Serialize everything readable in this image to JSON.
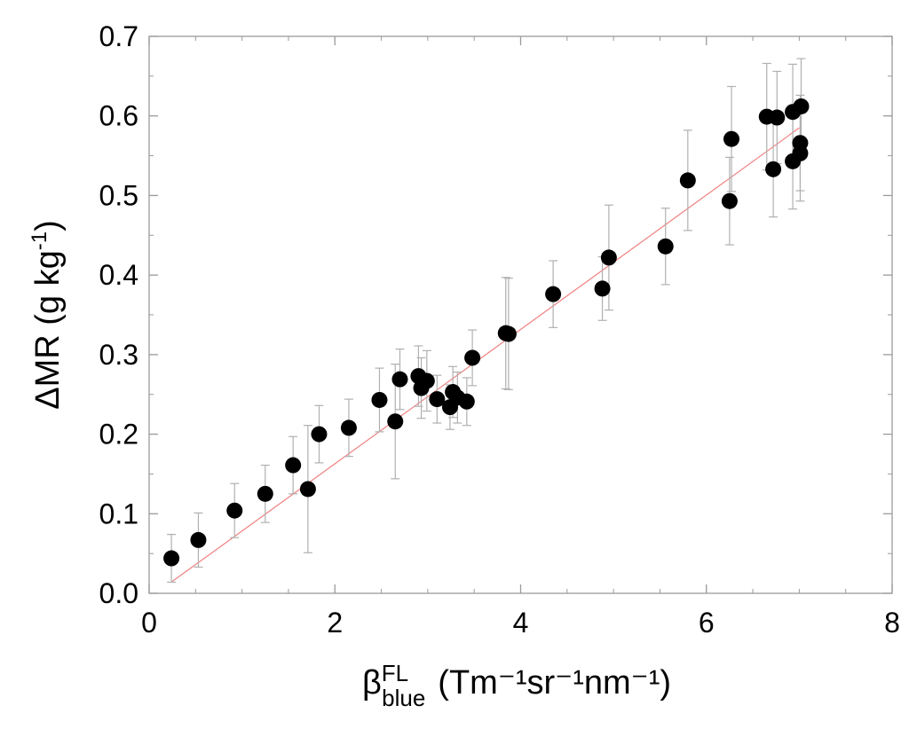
{
  "chart_data": {
    "type": "scatter",
    "xlabel": {
      "base": "β",
      "sup": "FL",
      "sub": "blue",
      "unit": "(Tm⁻¹sr⁻¹nm⁻¹)"
    },
    "ylabel": {
      "text": "ΔMR (g kg",
      "sup": "-1",
      "close": ")"
    },
    "xlim": [
      0,
      8
    ],
    "ylim": [
      0,
      0.7
    ],
    "xticks": [
      "0",
      "2",
      "4",
      "6",
      "8"
    ],
    "yticks": [
      "0.0",
      "0.1",
      "0.2",
      "0.3",
      "0.4",
      "0.5",
      "0.6",
      "0.7"
    ],
    "grid": false,
    "marker_color": "#000000",
    "errorbar_color": "#b0b0b0",
    "fit_line_color": "#f08080",
    "fit_line": {
      "x": [
        0.25,
        7.0
      ],
      "y": [
        0.015,
        0.585
      ]
    },
    "points": [
      {
        "x": 0.24,
        "y": 0.044,
        "err": 0.03
      },
      {
        "x": 0.53,
        "y": 0.067,
        "err": 0.034
      },
      {
        "x": 0.92,
        "y": 0.104,
        "err": 0.034
      },
      {
        "x": 1.25,
        "y": 0.125,
        "err": 0.036
      },
      {
        "x": 1.55,
        "y": 0.161,
        "err": 0.036
      },
      {
        "x": 1.71,
        "y": 0.131,
        "err": 0.08
      },
      {
        "x": 1.83,
        "y": 0.2,
        "err": 0.036
      },
      {
        "x": 2.15,
        "y": 0.208,
        "err": 0.036
      },
      {
        "x": 2.48,
        "y": 0.243,
        "err": 0.04
      },
      {
        "x": 2.65,
        "y": 0.216,
        "err": 0.072
      },
      {
        "x": 2.7,
        "y": 0.269,
        "err": 0.038
      },
      {
        "x": 2.9,
        "y": 0.273,
        "err": 0.038
      },
      {
        "x": 2.93,
        "y": 0.258,
        "err": 0.038
      },
      {
        "x": 2.99,
        "y": 0.267,
        "err": 0.038
      },
      {
        "x": 3.1,
        "y": 0.244,
        "err": 0.03
      },
      {
        "x": 3.24,
        "y": 0.234,
        "err": 0.028
      },
      {
        "x": 3.27,
        "y": 0.253,
        "err": 0.032
      },
      {
        "x": 3.32,
        "y": 0.246,
        "err": 0.032
      },
      {
        "x": 3.42,
        "y": 0.241,
        "err": 0.03
      },
      {
        "x": 3.48,
        "y": 0.296,
        "err": 0.035
      },
      {
        "x": 3.84,
        "y": 0.327,
        "err": 0.07
      },
      {
        "x": 3.87,
        "y": 0.326,
        "err": 0.07
      },
      {
        "x": 4.35,
        "y": 0.376,
        "err": 0.042
      },
      {
        "x": 4.88,
        "y": 0.383,
        "err": 0.04
      },
      {
        "x": 4.95,
        "y": 0.422,
        "err": 0.066
      },
      {
        "x": 5.56,
        "y": 0.436,
        "err": 0.048
      },
      {
        "x": 5.8,
        "y": 0.519,
        "err": 0.063
      },
      {
        "x": 6.25,
        "y": 0.493,
        "err": 0.055
      },
      {
        "x": 6.27,
        "y": 0.571,
        "err": 0.066
      },
      {
        "x": 6.65,
        "y": 0.599,
        "err": 0.067
      },
      {
        "x": 6.72,
        "y": 0.533,
        "err": 0.06
      },
      {
        "x": 6.76,
        "y": 0.598,
        "err": 0.058
      },
      {
        "x": 6.93,
        "y": 0.605,
        "err": 0.06
      },
      {
        "x": 6.93,
        "y": 0.543,
        "err": 0.06
      },
      {
        "x": 7.01,
        "y": 0.566,
        "err": 0.06
      },
      {
        "x": 7.01,
        "y": 0.553,
        "err": 0.06
      },
      {
        "x": 7.02,
        "y": 0.612,
        "err": 0.06
      }
    ]
  }
}
